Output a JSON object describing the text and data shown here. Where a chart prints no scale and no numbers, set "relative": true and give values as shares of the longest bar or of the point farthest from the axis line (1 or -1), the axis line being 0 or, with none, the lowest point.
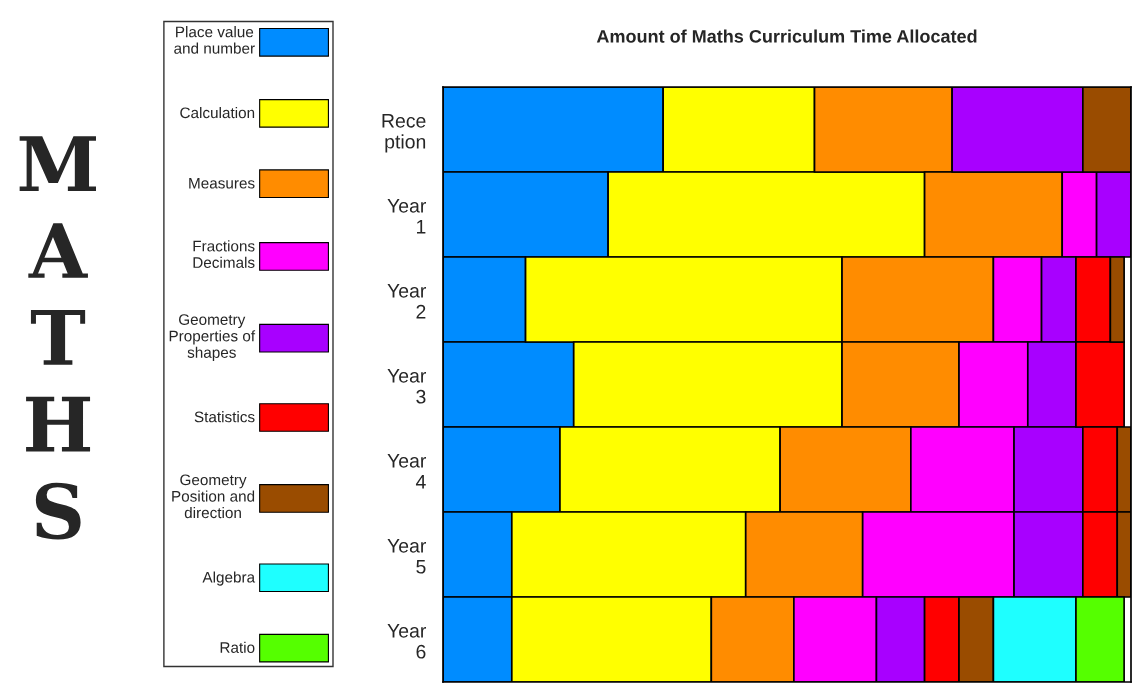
{
  "chart_data": {
    "type": "bar",
    "orientation": "horizontal",
    "stacked": true,
    "relative": true,
    "title": "Amount of Maths Curriculum Time Allocated",
    "categories": [
      "Rece\nption",
      "Year\n1",
      "Year\n2",
      "Year\n3",
      "Year\n4",
      "Year\n5",
      "Year\n6"
    ],
    "series": [
      {
        "name": "Place value\nand number",
        "color": "#008cff",
        "values": [
          0.32,
          0.24,
          0.12,
          0.19,
          0.17,
          0.1,
          0.1
        ]
      },
      {
        "name": "Calculation",
        "color": "#ffff00",
        "values": [
          0.22,
          0.46,
          0.46,
          0.39,
          0.32,
          0.34,
          0.29
        ]
      },
      {
        "name": "Measures",
        "color": "#ff8c00",
        "values": [
          0.2,
          0.2,
          0.22,
          0.17,
          0.19,
          0.17,
          0.12
        ]
      },
      {
        "name": "Fractions\nDecimals",
        "color": "#ff00ff",
        "values": [
          null,
          0.05,
          0.07,
          0.1,
          0.15,
          0.22,
          0.12
        ]
      },
      {
        "name": "Geometry\nProperties of\nshapes",
        "color": "#a800ff",
        "values": [
          0.19,
          0.05,
          0.05,
          0.07,
          0.1,
          0.1,
          0.07
        ]
      },
      {
        "name": "Statistics",
        "color": "#ff0000",
        "values": [
          null,
          null,
          0.05,
          0.07,
          0.05,
          0.05,
          0.05
        ]
      },
      {
        "name": "Geometry\nPosition and\ndirection",
        "color": "#9a4c00",
        "values": [
          0.07,
          null,
          0.02,
          null,
          0.02,
          0.02,
          0.05
        ]
      },
      {
        "name": "Algebra",
        "color": "#1effff",
        "values": [
          null,
          null,
          null,
          null,
          null,
          null,
          0.12
        ]
      },
      {
        "name": "Ratio",
        "color": "#55ff00",
        "values": [
          null,
          null,
          null,
          null,
          null,
          null,
          0.07
        ]
      }
    ],
    "legend": "left",
    "grid": false,
    "annotations": [
      "MATHS"
    ]
  }
}
